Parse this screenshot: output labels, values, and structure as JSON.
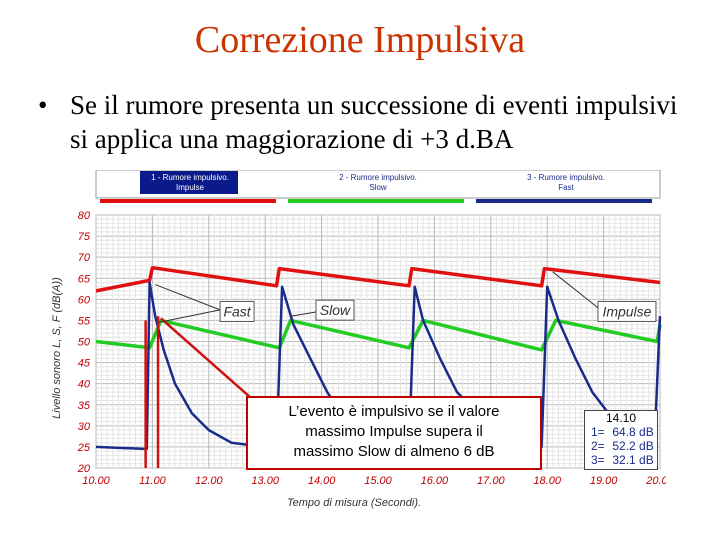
{
  "slide": {
    "title": "Correzione Impulsiva",
    "bullet_marker": "•",
    "bullet_text": "Se il rumore presenta un successione di eventi impulsivi si applica una maggiorazione di +3 d.BA"
  },
  "chart_data": {
    "type": "line",
    "xlabel": "Tempo di misura (Secondi).",
    "ylabel": "Livello sonoro L, S, F (dB(A))",
    "xlim": [
      10,
      20
    ],
    "ylim": [
      20,
      80
    ],
    "xticks": [
      "10.00",
      "11.00",
      "12.00",
      "13.00",
      "14.00",
      "15.00",
      "16.00",
      "17.00",
      "18.00",
      "19.00",
      "20.00"
    ],
    "yticks": [
      20,
      25,
      30,
      35,
      40,
      45,
      50,
      55,
      60,
      65,
      70,
      75,
      80
    ],
    "grid": true,
    "legend": [
      {
        "label_line1": "1 - Rumore impulsivo.",
        "label_line2": "Impulse",
        "color": "#e01010"
      },
      {
        "label_line1": "2 - Rumore impulsivo.",
        "label_line2": "Slow",
        "color": "#22cc22"
      },
      {
        "label_line1": "3 - Rumore impulsivo.",
        "label_line2": "Fast",
        "color": "#1a2b8a"
      }
    ],
    "annotations": [
      "Fast",
      "Slow",
      "Impulse"
    ],
    "series": [
      {
        "name": "Impulse",
        "color": "#e01010",
        "x": [
          10.0,
          10.95,
          11.0,
          13.2,
          13.25,
          15.55,
          15.6,
          17.9,
          17.95,
          20.0
        ],
        "y": [
          62.0,
          64.5,
          67.5,
          63.2,
          67.3,
          63.2,
          67.3,
          63.2,
          67.3,
          64.0
        ]
      },
      {
        "name": "Slow",
        "color": "#22cc22",
        "x": [
          10.0,
          10.95,
          11.15,
          13.25,
          13.45,
          15.55,
          15.8,
          17.9,
          18.15,
          19.95,
          20.0
        ],
        "y": [
          50.0,
          48.5,
          55.0,
          48.5,
          55.0,
          48.5,
          55.0,
          48.0,
          55.0,
          50.0,
          54.0
        ],
        "y_order_note_hidden": null
      },
      {
        "name": "Fast",
        "color": "#1a2b8a",
        "x": [
          10.0,
          10.9,
          10.95,
          11.05,
          11.2,
          11.4,
          11.7,
          12.0,
          12.4,
          13.0,
          13.2,
          13.3,
          13.5,
          13.8,
          14.1,
          14.4,
          15.55,
          15.65,
          15.8,
          16.1,
          16.4,
          17.0,
          17.9,
          18.0,
          18.2,
          18.5,
          18.8,
          19.2,
          19.9,
          20.0
        ],
        "y": [
          25.0,
          24.5,
          64.0,
          56.0,
          48.0,
          40.0,
          33.0,
          29.0,
          26.0,
          25.0,
          24.8,
          63.0,
          54.0,
          46.0,
          38.0,
          32.0,
          24.8,
          63.0,
          55.0,
          46.0,
          38.0,
          30.0,
          25.0,
          63.0,
          55.0,
          46.0,
          38.0,
          31.0,
          25.0,
          56.0
        ]
      }
    ]
  },
  "callout": {
    "line1": "L’evento è impulsivo se il valore",
    "line2": "massimo Impulse supera il",
    "line3": "massimo Slow di almeno 6 dB"
  },
  "readout": {
    "time": "14.10",
    "rows": [
      {
        "label": "1=",
        "value": "64.8 dB"
      },
      {
        "label": "2=",
        "value": "52.2 dB"
      },
      {
        "label": "3=",
        "value": "32.1 dB"
      }
    ]
  },
  "colors": {
    "title": "#cc3300",
    "callout_border": "#c00000",
    "marker_lines": "#d01010",
    "axis_labels": "#c00000"
  }
}
